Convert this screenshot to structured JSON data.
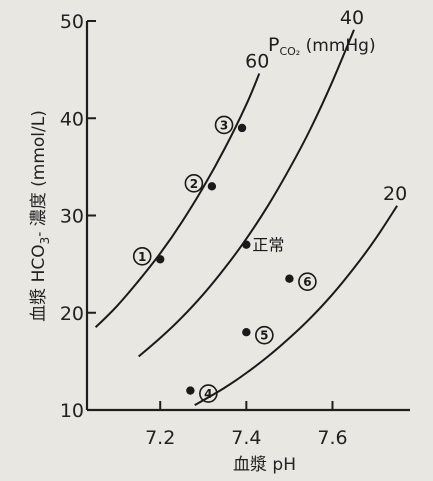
{
  "chart_data": {
    "type": "line",
    "xlabel": "血漿 pH",
    "ylabel": "血漿 HCO3- 濃度 (mmol/L)",
    "ylabel_parts": {
      "pre": "血漿 HCO",
      "sub": "3",
      "sup": "-",
      "post": " 濃度 (mmol/L)"
    },
    "xlim": [
      7.03,
      7.78
    ],
    "ylim": [
      10,
      50
    ],
    "xticks": [
      7.2,
      7.4,
      7.6
    ],
    "xtick_labels": [
      "7.2",
      "7.4",
      "7.6"
    ],
    "yticks": [
      10,
      20,
      30,
      40,
      50
    ],
    "ytick_labels": [
      "10",
      "20",
      "30",
      "40",
      "50"
    ],
    "grid": false,
    "legend_title": {
      "main": "P",
      "sub": "CO₂",
      "unit": " (mmHg)"
    },
    "series": [
      {
        "name": "60",
        "x": [
          7.05,
          7.1,
          7.15,
          7.2,
          7.25,
          7.3,
          7.35,
          7.4,
          7.43
        ],
        "y": [
          18.5,
          20.7,
          23.3,
          26.1,
          29.3,
          32.9,
          36.9,
          41.4,
          44.6
        ]
      },
      {
        "name": "40",
        "x": [
          7.15,
          7.2,
          7.25,
          7.3,
          7.35,
          7.4,
          7.45,
          7.5,
          7.55,
          7.6,
          7.65
        ],
        "y": [
          15.5,
          17.4,
          19.5,
          21.9,
          24.6,
          27.6,
          31.0,
          34.8,
          39.0,
          43.8,
          49.1
        ]
      },
      {
        "name": "20",
        "x": [
          7.28,
          7.3,
          7.35,
          7.4,
          7.45,
          7.5,
          7.55,
          7.6,
          7.65,
          7.7,
          7.75
        ],
        "y": [
          10.5,
          11.0,
          12.3,
          13.8,
          15.5,
          17.4,
          19.5,
          21.9,
          24.6,
          27.6,
          31.0
        ]
      }
    ],
    "points": [
      {
        "label": "①",
        "num": "1",
        "x": 7.2,
        "y": 25.5,
        "label_side": "left"
      },
      {
        "label": "②",
        "num": "2",
        "x": 7.32,
        "y": 33.0,
        "label_side": "left"
      },
      {
        "label": "③",
        "num": "3",
        "x": 7.39,
        "y": 39.0,
        "label_side": "left"
      },
      {
        "label": "④",
        "num": "4",
        "x": 7.27,
        "y": 12.0,
        "label_side": "right"
      },
      {
        "label": "⑤",
        "num": "5",
        "x": 7.4,
        "y": 18.0,
        "label_side": "right"
      },
      {
        "label": "⑥",
        "num": "6",
        "x": 7.5,
        "y": 23.5,
        "label_side": "right"
      },
      {
        "label": "正常",
        "num": "",
        "x": 7.4,
        "y": 27.0,
        "label_side": "right-text"
      }
    ]
  }
}
